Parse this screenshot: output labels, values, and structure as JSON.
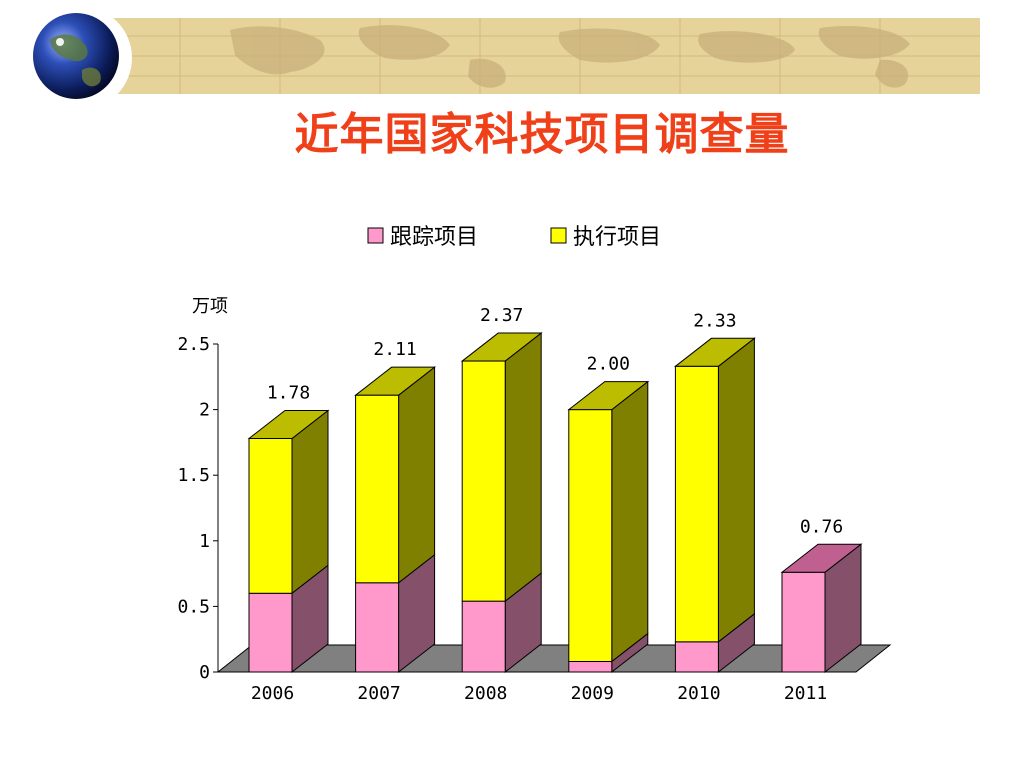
{
  "title": "近年国家科技项目调查量",
  "colors": {
    "title": "#f0401a",
    "banner": "#e6d39a",
    "tracking_front": "#ff99cc",
    "tracking_side": "#84506a",
    "tracking_top": "#c06090",
    "execution_front": "#ffff00",
    "execution_side": "#808000",
    "execution_top": "#bcbc00",
    "floor": "#808080"
  },
  "icons": {
    "globe": "globe-icon"
  },
  "chart_data": {
    "type": "bar",
    "stacked": true,
    "three_d": true,
    "unit_label": "万项",
    "categories": [
      "2006",
      "2007",
      "2008",
      "2009",
      "2010",
      "2011"
    ],
    "series": [
      {
        "name": "跟踪项目",
        "values": [
          0.6,
          0.68,
          0.54,
          0.08,
          0.23,
          0.76
        ]
      },
      {
        "name": "执行项目",
        "values": [
          1.18,
          1.43,
          1.83,
          1.92,
          2.1,
          0
        ]
      }
    ],
    "totals": [
      "1.78",
      "2.11",
      "2.37",
      "2.00",
      "2.33",
      "0.76"
    ],
    "yticks": [
      "0",
      "0.5",
      "1",
      "1.5",
      "2",
      "2.5"
    ],
    "ylim": [
      0,
      2.5
    ],
    "legend_position": "top"
  }
}
